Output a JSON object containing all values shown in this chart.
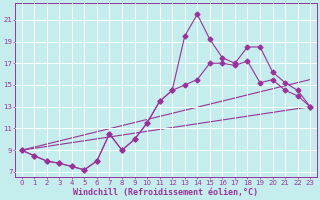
{
  "xlabel": "Windchill (Refroidissement éolien,°C)",
  "bg_color": "#c5eded",
  "grid_color": "#aadddd",
  "line_color": "#993399",
  "xlim": [
    -0.5,
    23.5
  ],
  "ylim": [
    6.5,
    22.5
  ],
  "xticks": [
    0,
    1,
    2,
    3,
    4,
    5,
    6,
    7,
    8,
    9,
    10,
    11,
    12,
    13,
    14,
    15,
    16,
    17,
    18,
    19,
    20,
    21,
    22,
    23
  ],
  "yticks": [
    7,
    9,
    11,
    13,
    15,
    17,
    19,
    21
  ],
  "series1_x": [
    0,
    1,
    2,
    3,
    4,
    5,
    6,
    7,
    8,
    9,
    10,
    11,
    12,
    13,
    14,
    15,
    16,
    17,
    18,
    19,
    20,
    21,
    22,
    23
  ],
  "series1_y": [
    9.0,
    8.5,
    8.0,
    7.8,
    7.5,
    7.2,
    8.0,
    10.5,
    9.0,
    10.0,
    11.5,
    13.5,
    14.5,
    15.0,
    15.5,
    17.0,
    17.0,
    16.8,
    17.2,
    15.2,
    15.5,
    14.5,
    14.0,
    13.0
  ],
  "series2_x": [
    0,
    1,
    2,
    3,
    4,
    5,
    6,
    7,
    8,
    9,
    10,
    11,
    12,
    13,
    14,
    15,
    16,
    17,
    18,
    19,
    20,
    21,
    22,
    23
  ],
  "series2_y": [
    9.0,
    8.5,
    8.0,
    7.8,
    7.5,
    7.2,
    8.0,
    10.5,
    9.0,
    10.0,
    11.5,
    13.5,
    14.5,
    19.5,
    21.5,
    19.2,
    17.5,
    17.0,
    18.5,
    18.5,
    16.2,
    15.2,
    14.5,
    13.0
  ],
  "series3_x": [
    0,
    23
  ],
  "series3_y": [
    9.0,
    13.0
  ],
  "series4_x": [
    0,
    23
  ],
  "series4_y": [
    9.0,
    15.5
  ],
  "marker": "D",
  "markersize": 2.5,
  "linewidth": 0.8,
  "tick_fontsize": 5.0,
  "xlabel_fontsize": 6.0
}
